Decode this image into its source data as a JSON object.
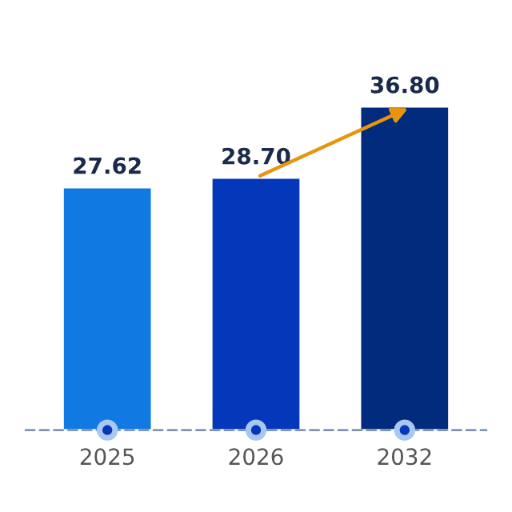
{
  "chart_data": {
    "type": "bar",
    "categories": [
      "2025",
      "2026",
      "2032"
    ],
    "values": [
      27.62,
      28.7,
      36.8
    ],
    "value_labels": [
      "27.62",
      "28.70",
      "36.80"
    ],
    "colors": [
      "#1079e2",
      "#0437ba",
      "#012b7c"
    ],
    "grid": false,
    "legend": false
  }
}
